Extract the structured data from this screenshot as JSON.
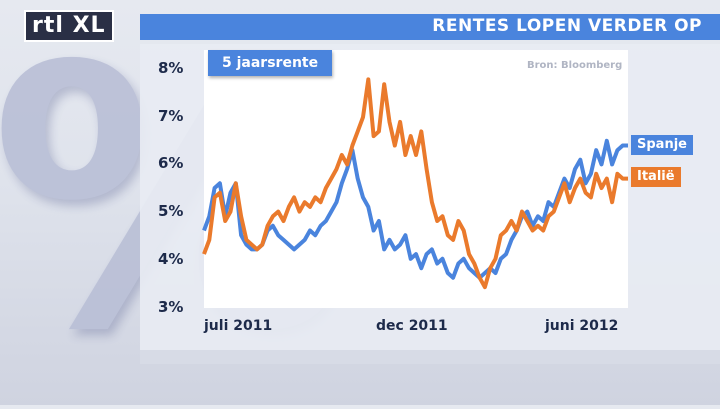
{
  "header": {
    "title": "RENTES LOPEN VERDER OP"
  },
  "logo": {
    "text": "rtl XL"
  },
  "source_note": "Bron: Bloomberg",
  "colors": {
    "spanje": "#4a84dd",
    "italie": "#ea7a2c",
    "header": "#4a84dd"
  },
  "chart_data": {
    "type": "line",
    "title": "RENTES LOPEN VERDER OP",
    "ylabel": "5 jaarsrente",
    "xlabel": "",
    "ylim": [
      3,
      8
    ],
    "yticks": [
      "8%",
      "7%",
      "6%",
      "5%",
      "4%",
      "3%"
    ],
    "xticks": [
      "juli 2011",
      "dec 2011",
      "juni 2012"
    ],
    "x": [
      0,
      1,
      2,
      3,
      4,
      5,
      6,
      7,
      8,
      9,
      10,
      11,
      12,
      13,
      14,
      15,
      16,
      17,
      18,
      19,
      20,
      21,
      22,
      23,
      24,
      25,
      26,
      27,
      28,
      29,
      30,
      31,
      32,
      33,
      34,
      35,
      36,
      37,
      38,
      39,
      40,
      41,
      42,
      43,
      44,
      45,
      46,
      47,
      48,
      49,
      50,
      51,
      52,
      53,
      54,
      55,
      56,
      57,
      58,
      59,
      60,
      61,
      62,
      63,
      64,
      65,
      66,
      67,
      68,
      69,
      70,
      71,
      72,
      73,
      74,
      75,
      76,
      77,
      78,
      79,
      80
    ],
    "series": [
      {
        "name": "Spanje",
        "values": [
          4.6,
          4.9,
          5.5,
          5.6,
          4.9,
          5.4,
          5.6,
          4.5,
          4.3,
          4.2,
          4.2,
          4.3,
          4.6,
          4.7,
          4.5,
          4.4,
          4.3,
          4.2,
          4.3,
          4.4,
          4.6,
          4.5,
          4.7,
          4.8,
          5.0,
          5.2,
          5.6,
          5.9,
          6.3,
          5.7,
          5.3,
          5.1,
          4.6,
          4.8,
          4.2,
          4.4,
          4.2,
          4.3,
          4.5,
          4.0,
          4.1,
          3.8,
          4.1,
          4.2,
          3.9,
          4.0,
          3.7,
          3.6,
          3.9,
          4.0,
          3.8,
          3.7,
          3.6,
          3.7,
          3.8,
          3.7,
          4.0,
          4.1,
          4.4,
          4.6,
          4.9,
          5.0,
          4.7,
          4.9,
          4.8,
          5.2,
          5.1,
          5.4,
          5.7,
          5.5,
          5.9,
          6.1,
          5.6,
          5.8,
          6.3,
          6.0,
          6.5,
          6.0,
          6.3,
          6.4,
          6.4
        ]
      },
      {
        "name": "Italië",
        "values": [
          4.1,
          4.4,
          5.3,
          5.4,
          4.8,
          5.0,
          5.6,
          4.9,
          4.4,
          4.3,
          4.2,
          4.3,
          4.7,
          4.9,
          5.0,
          4.8,
          5.1,
          5.3,
          5.0,
          5.2,
          5.1,
          5.3,
          5.2,
          5.5,
          5.7,
          5.9,
          6.2,
          6.0,
          6.4,
          6.7,
          7.0,
          7.8,
          6.6,
          6.7,
          7.7,
          6.9,
          6.4,
          6.9,
          6.2,
          6.6,
          6.2,
          6.7,
          5.9,
          5.2,
          4.8,
          4.9,
          4.5,
          4.4,
          4.8,
          4.6,
          4.1,
          3.9,
          3.6,
          3.4,
          3.8,
          4.0,
          4.5,
          4.6,
          4.8,
          4.6,
          5.0,
          4.8,
          4.6,
          4.7,
          4.6,
          4.9,
          5.0,
          5.3,
          5.6,
          5.2,
          5.5,
          5.7,
          5.4,
          5.3,
          5.8,
          5.5,
          5.7,
          5.2,
          5.8,
          5.7,
          5.7
        ]
      }
    ],
    "legend": "right",
    "grid": false
  }
}
